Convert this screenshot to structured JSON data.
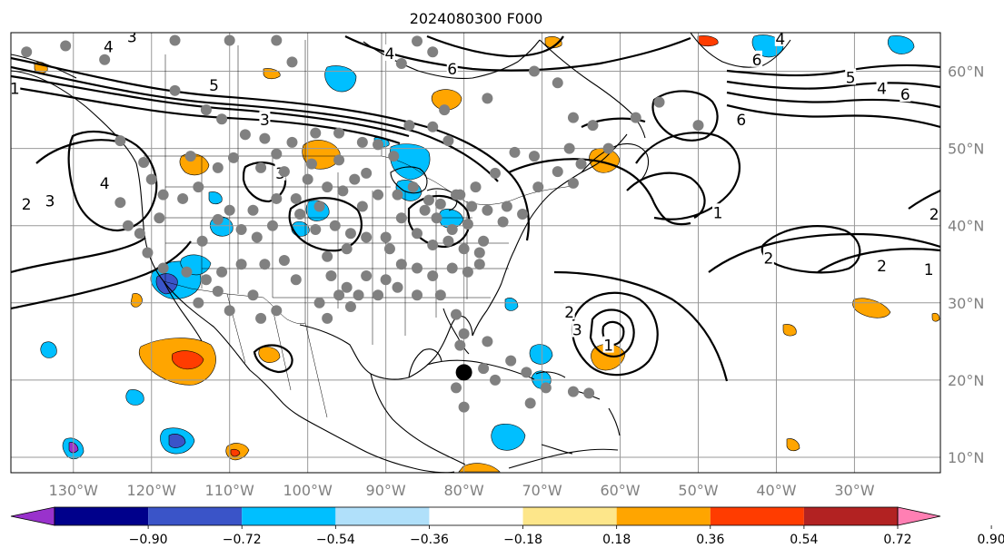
{
  "map": {
    "title": "2024080300 F000",
    "projection": "PlateCarree",
    "extent": {
      "lon": [
        -138,
        -19
      ],
      "lat": [
        8,
        65
      ]
    },
    "lon_ticks": [
      {
        "lon": -130,
        "label": "130°W"
      },
      {
        "lon": -120,
        "label": "120°W"
      },
      {
        "lon": -110,
        "label": "110°W"
      },
      {
        "lon": -100,
        "label": "100°W"
      },
      {
        "lon": -90,
        "label": "90°W"
      },
      {
        "lon": -80,
        "label": "80°W"
      },
      {
        "lon": -70,
        "label": "70°W"
      },
      {
        "lon": -60,
        "label": "60°W"
      },
      {
        "lon": -50,
        "label": "50°W"
      },
      {
        "lon": -40,
        "label": "40°W"
      },
      {
        "lon": -30,
        "label": "30°W"
      }
    ],
    "lat_ticks": [
      {
        "lat": 60,
        "label": "60°N"
      },
      {
        "lat": 50,
        "label": "50°N"
      },
      {
        "lat": 40,
        "label": "40°N"
      },
      {
        "lat": 30,
        "label": "30°N"
      },
      {
        "lat": 20,
        "label": "20°N"
      },
      {
        "lat": 10,
        "label": "10°N"
      }
    ],
    "gridlines": true,
    "contour_labels": [
      {
        "text": "2",
        "lon": -136,
        "lat": 42.8
      },
      {
        "text": "3",
        "lon": -133,
        "lat": 43.2
      },
      {
        "text": "4",
        "lon": -126,
        "lat": 45.5
      },
      {
        "text": "1",
        "lon": -137.5,
        "lat": 57.8
      },
      {
        "text": "5",
        "lon": -112,
        "lat": 58.2
      },
      {
        "text": "3",
        "lon": -105.5,
        "lat": 53.7
      },
      {
        "text": "3",
        "lon": -103.5,
        "lat": 46.8
      },
      {
        "text": "3",
        "lon": -122.5,
        "lat": 64.5
      },
      {
        "text": "4",
        "lon": -125.5,
        "lat": 63.2
      },
      {
        "text": "6",
        "lon": -81.5,
        "lat": 60.3
      },
      {
        "text": "4",
        "lon": -89.5,
        "lat": 62.3
      },
      {
        "text": "6",
        "lon": -42.5,
        "lat": 61.5
      },
      {
        "text": "6",
        "lon": -44.5,
        "lat": 53.7
      },
      {
        "text": "4",
        "lon": -39.5,
        "lat": 64.2
      },
      {
        "text": "5",
        "lon": -30.5,
        "lat": 59.2
      },
      {
        "text": "4",
        "lon": -26.5,
        "lat": 57.8
      },
      {
        "text": "6",
        "lon": -23.5,
        "lat": 57.0
      },
      {
        "text": "1",
        "lon": -47.5,
        "lat": 41.7
      },
      {
        "text": "2",
        "lon": -41,
        "lat": 35.8
      },
      {
        "text": "2",
        "lon": -26.5,
        "lat": 34.8
      },
      {
        "text": "1",
        "lon": -20.5,
        "lat": 34.3
      },
      {
        "text": "2",
        "lon": -19.8,
        "lat": 41.5
      },
      {
        "text": "2",
        "lon": -66.5,
        "lat": 28.8
      },
      {
        "text": "3",
        "lon": -65.5,
        "lat": 26.5
      },
      {
        "text": "1",
        "lon": -61.5,
        "lat": 24.5
      }
    ],
    "observation_marker_color": "#808080",
    "observation_markers": [
      [
        -136,
        62.5
      ],
      [
        -131,
        63.3
      ],
      [
        -126,
        61.5
      ],
      [
        -117,
        64
      ],
      [
        -110,
        64
      ],
      [
        -104,
        64
      ],
      [
        -102,
        61.2
      ],
      [
        -88,
        61
      ],
      [
        -84,
        62.5
      ],
      [
        -86,
        63.9
      ],
      [
        -117,
        57.5
      ],
      [
        -113,
        55
      ],
      [
        -111,
        53.8
      ],
      [
        -108,
        51.8
      ],
      [
        -105.5,
        51.3
      ],
      [
        -102,
        50.8
      ],
      [
        -99,
        52
      ],
      [
        -96,
        52
      ],
      [
        -93,
        50.8
      ],
      [
        -91,
        50.5
      ],
      [
        -89,
        49
      ],
      [
        -87,
        53
      ],
      [
        -84,
        52.8
      ],
      [
        -82,
        51
      ],
      [
        -82.5,
        55
      ],
      [
        -77,
        56.5
      ],
      [
        -71,
        60
      ],
      [
        -68,
        58.5
      ],
      [
        -66,
        54
      ],
      [
        -63.5,
        53
      ],
      [
        -61.5,
        50
      ],
      [
        -58,
        54
      ],
      [
        -55,
        56
      ],
      [
        -50,
        53
      ],
      [
        -124,
        51
      ],
      [
        -121,
        48.2
      ],
      [
        -115,
        49
      ],
      [
        -111.5,
        47.5
      ],
      [
        -109.5,
        48.8
      ],
      [
        -106,
        47.5
      ],
      [
        -103,
        47
      ],
      [
        -100,
        46
      ],
      [
        -97.5,
        45
      ],
      [
        -95.5,
        44.5
      ],
      [
        -94,
        46
      ],
      [
        -92.5,
        46.8
      ],
      [
        -99.5,
        48
      ],
      [
        -104,
        49.3
      ],
      [
        -96,
        48.5
      ],
      [
        -93,
        42.5
      ],
      [
        -91,
        44
      ],
      [
        -88.5,
        44
      ],
      [
        -86.5,
        45
      ],
      [
        -84.5,
        43.3
      ],
      [
        -83,
        42.8
      ],
      [
        -81,
        44
      ],
      [
        -79,
        42.5
      ],
      [
        -77,
        42
      ],
      [
        -74.5,
        42.5
      ],
      [
        -75,
        40.5
      ],
      [
        -72.5,
        41.5
      ],
      [
        -70.5,
        45
      ],
      [
        -68,
        47
      ],
      [
        -66,
        45.5
      ],
      [
        -71,
        49
      ],
      [
        -65,
        48
      ],
      [
        -66.5,
        50
      ],
      [
        -73.5,
        49.5
      ],
      [
        -76,
        46.8
      ],
      [
        -78.5,
        45
      ],
      [
        -80.5,
        44
      ],
      [
        -85,
        42
      ],
      [
        -88,
        41
      ],
      [
        -90,
        38.5
      ],
      [
        -86,
        39
      ],
      [
        -84,
        37.5
      ],
      [
        -82,
        38
      ],
      [
        -80,
        37
      ],
      [
        -78,
        36.5
      ],
      [
        -77.5,
        38
      ],
      [
        -79.5,
        40.2
      ],
      [
        -81.5,
        39.5
      ],
      [
        -83.5,
        41
      ],
      [
        -89.5,
        37
      ],
      [
        -92.5,
        38.5
      ],
      [
        -94.5,
        39
      ],
      [
        -96.5,
        40
      ],
      [
        -99,
        39.5
      ],
      [
        -101,
        41.5
      ],
      [
        -104.5,
        40
      ],
      [
        -106.5,
        38.5
      ],
      [
        -108.5,
        39.5
      ],
      [
        -111.5,
        40.8
      ],
      [
        -113.5,
        38
      ],
      [
        -116,
        43.5
      ],
      [
        -119,
        41
      ],
      [
        -121.5,
        39
      ],
      [
        -123,
        40
      ],
      [
        -124,
        43
      ],
      [
        -120,
        46
      ],
      [
        -118.5,
        44
      ],
      [
        -114,
        45
      ],
      [
        -110,
        42
      ],
      [
        -107,
        42
      ],
      [
        -104,
        43.5
      ],
      [
        -101.5,
        43.5
      ],
      [
        -98.5,
        42.5
      ],
      [
        -95,
        37
      ],
      [
        -97.5,
        36
      ],
      [
        -97,
        33.5
      ],
      [
        -95,
        32
      ],
      [
        -92.5,
        33.5
      ],
      [
        -90,
        33
      ],
      [
        -88,
        35
      ],
      [
        -86,
        34.5
      ],
      [
        -84,
        33.5
      ],
      [
        -81.5,
        34.5
      ],
      [
        -79.5,
        34
      ],
      [
        -78,
        35
      ],
      [
        -83,
        31
      ],
      [
        -86,
        31
      ],
      [
        -88.5,
        32
      ],
      [
        -91,
        31
      ],
      [
        -93.5,
        31
      ],
      [
        -96,
        31
      ],
      [
        -98.5,
        30
      ],
      [
        -101.5,
        33
      ],
      [
        -103,
        35.5
      ],
      [
        -105.5,
        35
      ],
      [
        -108.5,
        35
      ],
      [
        -111,
        34
      ],
      [
        -113,
        33
      ],
      [
        -115.5,
        34
      ],
      [
        -118.5,
        34.5
      ],
      [
        -120.5,
        36.5
      ],
      [
        -97.5,
        28
      ],
      [
        -94.5,
        29.5
      ],
      [
        -81,
        28.5
      ],
      [
        -80,
        26
      ],
      [
        -80.5,
        24.5
      ],
      [
        -77,
        25
      ],
      [
        -80,
        21
      ],
      [
        -77.5,
        21.5
      ],
      [
        -76,
        20
      ],
      [
        -74,
        22.5
      ],
      [
        -72,
        21
      ],
      [
        -69.5,
        19
      ],
      [
        -66,
        18.5
      ],
      [
        -71.5,
        17
      ],
      [
        -64,
        18.3
      ],
      [
        -81,
        19
      ],
      [
        -80,
        16.5
      ],
      [
        -106,
        28
      ],
      [
        -104,
        29
      ],
      [
        -107,
        31
      ],
      [
        -110,
        29
      ],
      [
        -111.5,
        31.5
      ],
      [
        -114,
        30
      ]
    ],
    "black_marker": {
      "lon": -80,
      "lat": 21,
      "color": "#000000"
    }
  },
  "colorbar": {
    "levels": [
      "−0.90",
      "−0.72",
      "−0.54",
      "−0.36",
      "−0.18",
      "0.18",
      "0.36",
      "0.54",
      "0.72",
      "0.90"
    ],
    "colors": [
      "#9932cc",
      "#00008b",
      "#3a54c8",
      "#00bfff",
      "#b0e0fa",
      "#ffffff",
      "#fde68a",
      "#ffa500",
      "#ff3c00",
      "#b22222",
      "#ff7fb3"
    ],
    "extend": "both"
  },
  "colors": {
    "blue_strong": "#3a54c8",
    "blue": "#00bfff",
    "blue_light": "#b0e0fa",
    "yellow_light": "#fde68a",
    "orange": "#ffa500",
    "red_orange": "#ff3c00",
    "purple": "#9932cc"
  }
}
